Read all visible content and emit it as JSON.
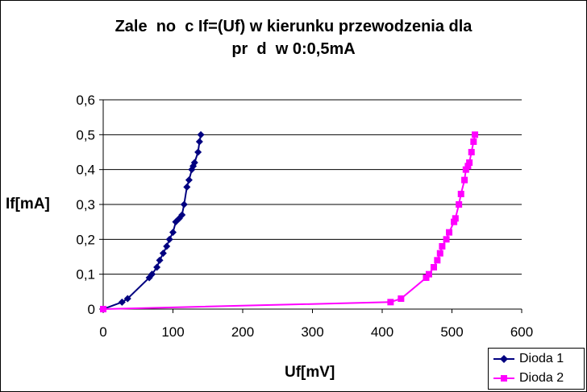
{
  "chart_data": {
    "type": "scatter",
    "title_line1": "Zale  no  c If=(Uf) w kierunku przewodzenia dla",
    "title_line2": "pr  d  w 0:0,5mA",
    "xlabel": "Uf[mV]",
    "ylabel": "If[mA]",
    "xlim": [
      0,
      600
    ],
    "ylim": [
      0,
      0.6
    ],
    "x_ticks": [
      "0",
      "100",
      "200",
      "300",
      "400",
      "500",
      "600"
    ],
    "y_ticks": [
      "0",
      "0,1",
      "0,2",
      "0,3",
      "0,4",
      "0,5",
      "0,6"
    ],
    "grid": "horizontal",
    "legend_position": "bottom-right",
    "series": [
      {
        "name": "Dioda 1",
        "color": "#000080",
        "marker": "diamond",
        "x": [
          0,
          27,
          35,
          66,
          70,
          77,
          81,
          86,
          91,
          95,
          100,
          104,
          109,
          113,
          116,
          120,
          123,
          127,
          129,
          131,
          136,
          138,
          140
        ],
        "y": [
          0,
          0.02,
          0.03,
          0.09,
          0.1,
          0.12,
          0.14,
          0.16,
          0.18,
          0.2,
          0.22,
          0.25,
          0.26,
          0.27,
          0.3,
          0.35,
          0.37,
          0.4,
          0.41,
          0.42,
          0.45,
          0.48,
          0.5
        ]
      },
      {
        "name": "Dioda 2",
        "color": "#FF00FF",
        "marker": "square",
        "x": [
          0,
          412,
          427,
          463,
          467,
          474,
          479,
          483,
          486,
          492,
          496,
          503,
          505,
          510,
          513,
          518,
          520,
          523,
          525,
          528,
          531,
          533
        ],
        "y": [
          0,
          0.02,
          0.03,
          0.09,
          0.1,
          0.12,
          0.14,
          0.16,
          0.18,
          0.2,
          0.22,
          0.25,
          0.26,
          0.3,
          0.33,
          0.37,
          0.4,
          0.41,
          0.42,
          0.45,
          0.48,
          0.5
        ]
      }
    ]
  }
}
